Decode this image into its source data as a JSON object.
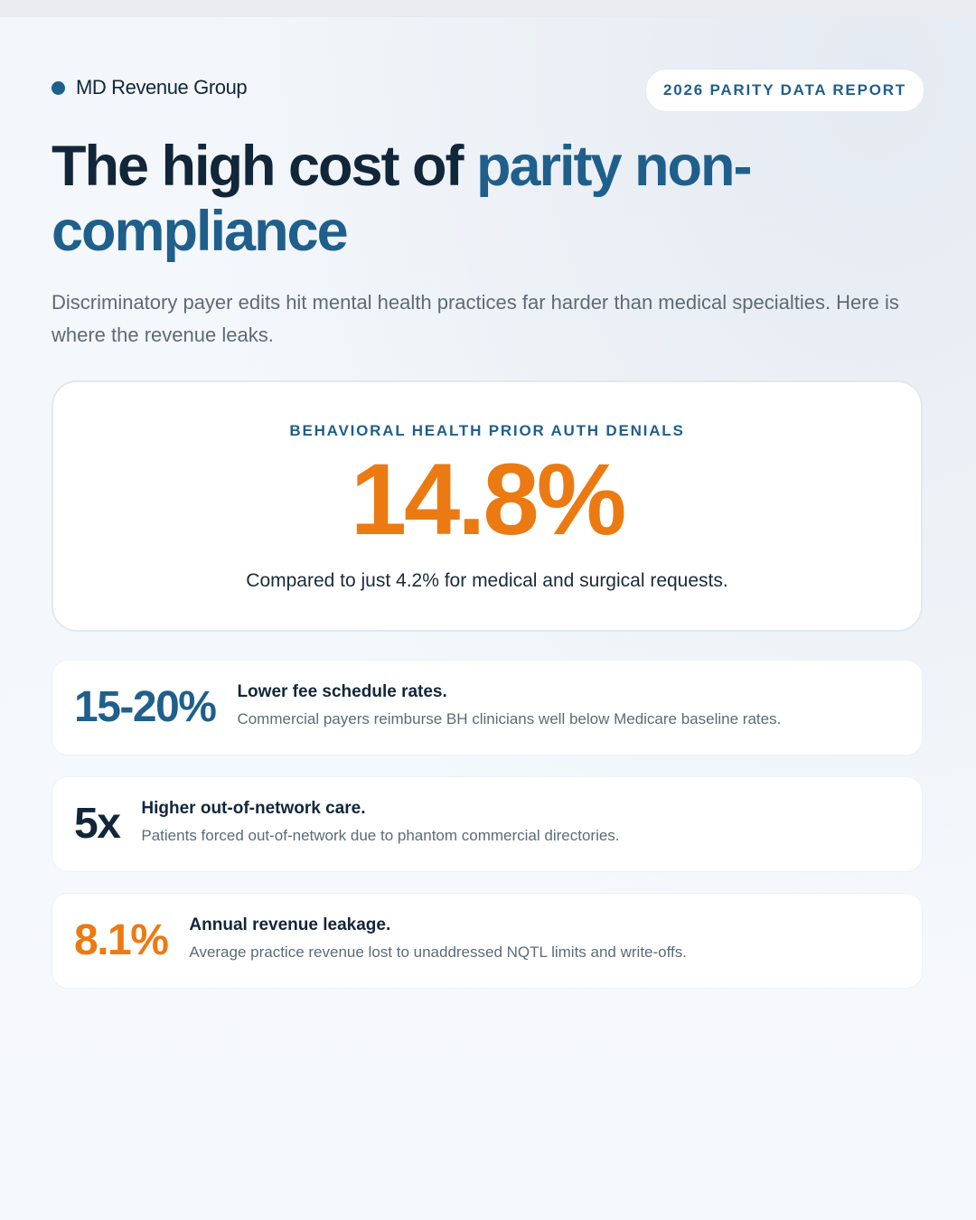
{
  "brand": {
    "name": "MD Revenue Group"
  },
  "badge": {
    "label": "2026 PARITY DATA REPORT"
  },
  "headline": {
    "part1": "The high cost of ",
    "part2": "parity non-compliance"
  },
  "subtitle": "Discriminatory payer edits hit mental health practices far harder than medical specialties. Here is where the revenue leaks.",
  "hero": {
    "label": "BEHAVIORAL HEALTH PRIOR AUTH DENIALS",
    "value": "14.8%",
    "note": "Compared to just 4.2% for medical and surgical requests."
  },
  "stats": [
    {
      "value": "15-20%",
      "title": "Lower fee schedule rates.",
      "description": "Commercial payers reimburse BH clinicians well below Medicare baseline rates."
    },
    {
      "value": "5x",
      "title": "Higher out-of-network care.",
      "description": "Patients forced out-of-network due to phantom commercial directories."
    },
    {
      "value": "8.1%",
      "title": "Annual revenue leakage.",
      "description": "Average practice revenue lost to unaddressed NQTL limits and write-offs."
    }
  ],
  "colors": {
    "brand_blue": "#1f5f8b",
    "navy": "#12263a",
    "orange": "#ec7a12",
    "muted_text": "#5c6b78"
  }
}
